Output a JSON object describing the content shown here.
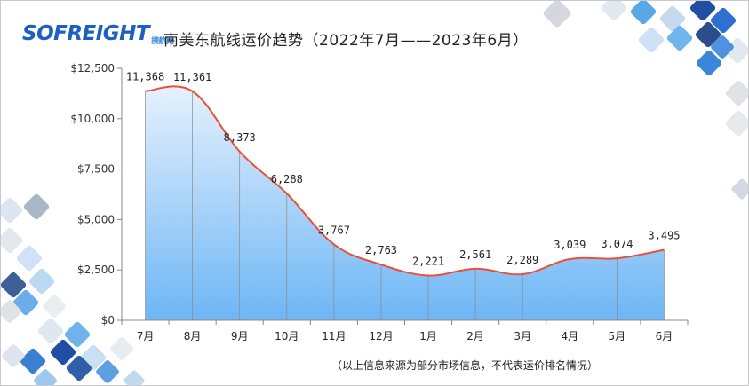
{
  "logo": {
    "text": "SOFREIGHT",
    "subtext": "搜航网"
  },
  "title": "南美东航线运价趋势（2022年7月——2023年6月）",
  "footnote": "（以上信息来源为部分市场信息，不代表运价排名情况）",
  "chart_data": {
    "type": "area",
    "title": "南美东航线运价趋势（2022年7月——2023年6月）",
    "categories": [
      "7月",
      "8月",
      "9月",
      "10月",
      "11月",
      "12月",
      "1月",
      "2月",
      "3月",
      "4月",
      "5月",
      "6月"
    ],
    "series": [
      {
        "values": [
          11368,
          11361,
          8373,
          6288,
          3767,
          2763,
          2221,
          2561,
          2289,
          3039,
          3074,
          3495
        ]
      }
    ],
    "data_labels": [
      "11,368",
      "11,361",
      "8,373",
      "6,288",
      "3,767",
      "2,763",
      "2,221",
      "2,561",
      "2,289",
      "3,039",
      "3,074",
      "3,495"
    ],
    "ylim": [
      0,
      12500
    ],
    "yticks": [
      0,
      2500,
      5000,
      7500,
      10000,
      12500
    ],
    "ytick_labels": [
      "$0",
      "$2,500",
      "$5,000",
      "$7,500",
      "$10,000",
      "$12,500"
    ],
    "xlabel": "",
    "ylabel": "",
    "grid": false,
    "line_color": "#e8503a",
    "fill_top_color": "#e6f1fd",
    "fill_bottom_color": "#6db6f5"
  }
}
